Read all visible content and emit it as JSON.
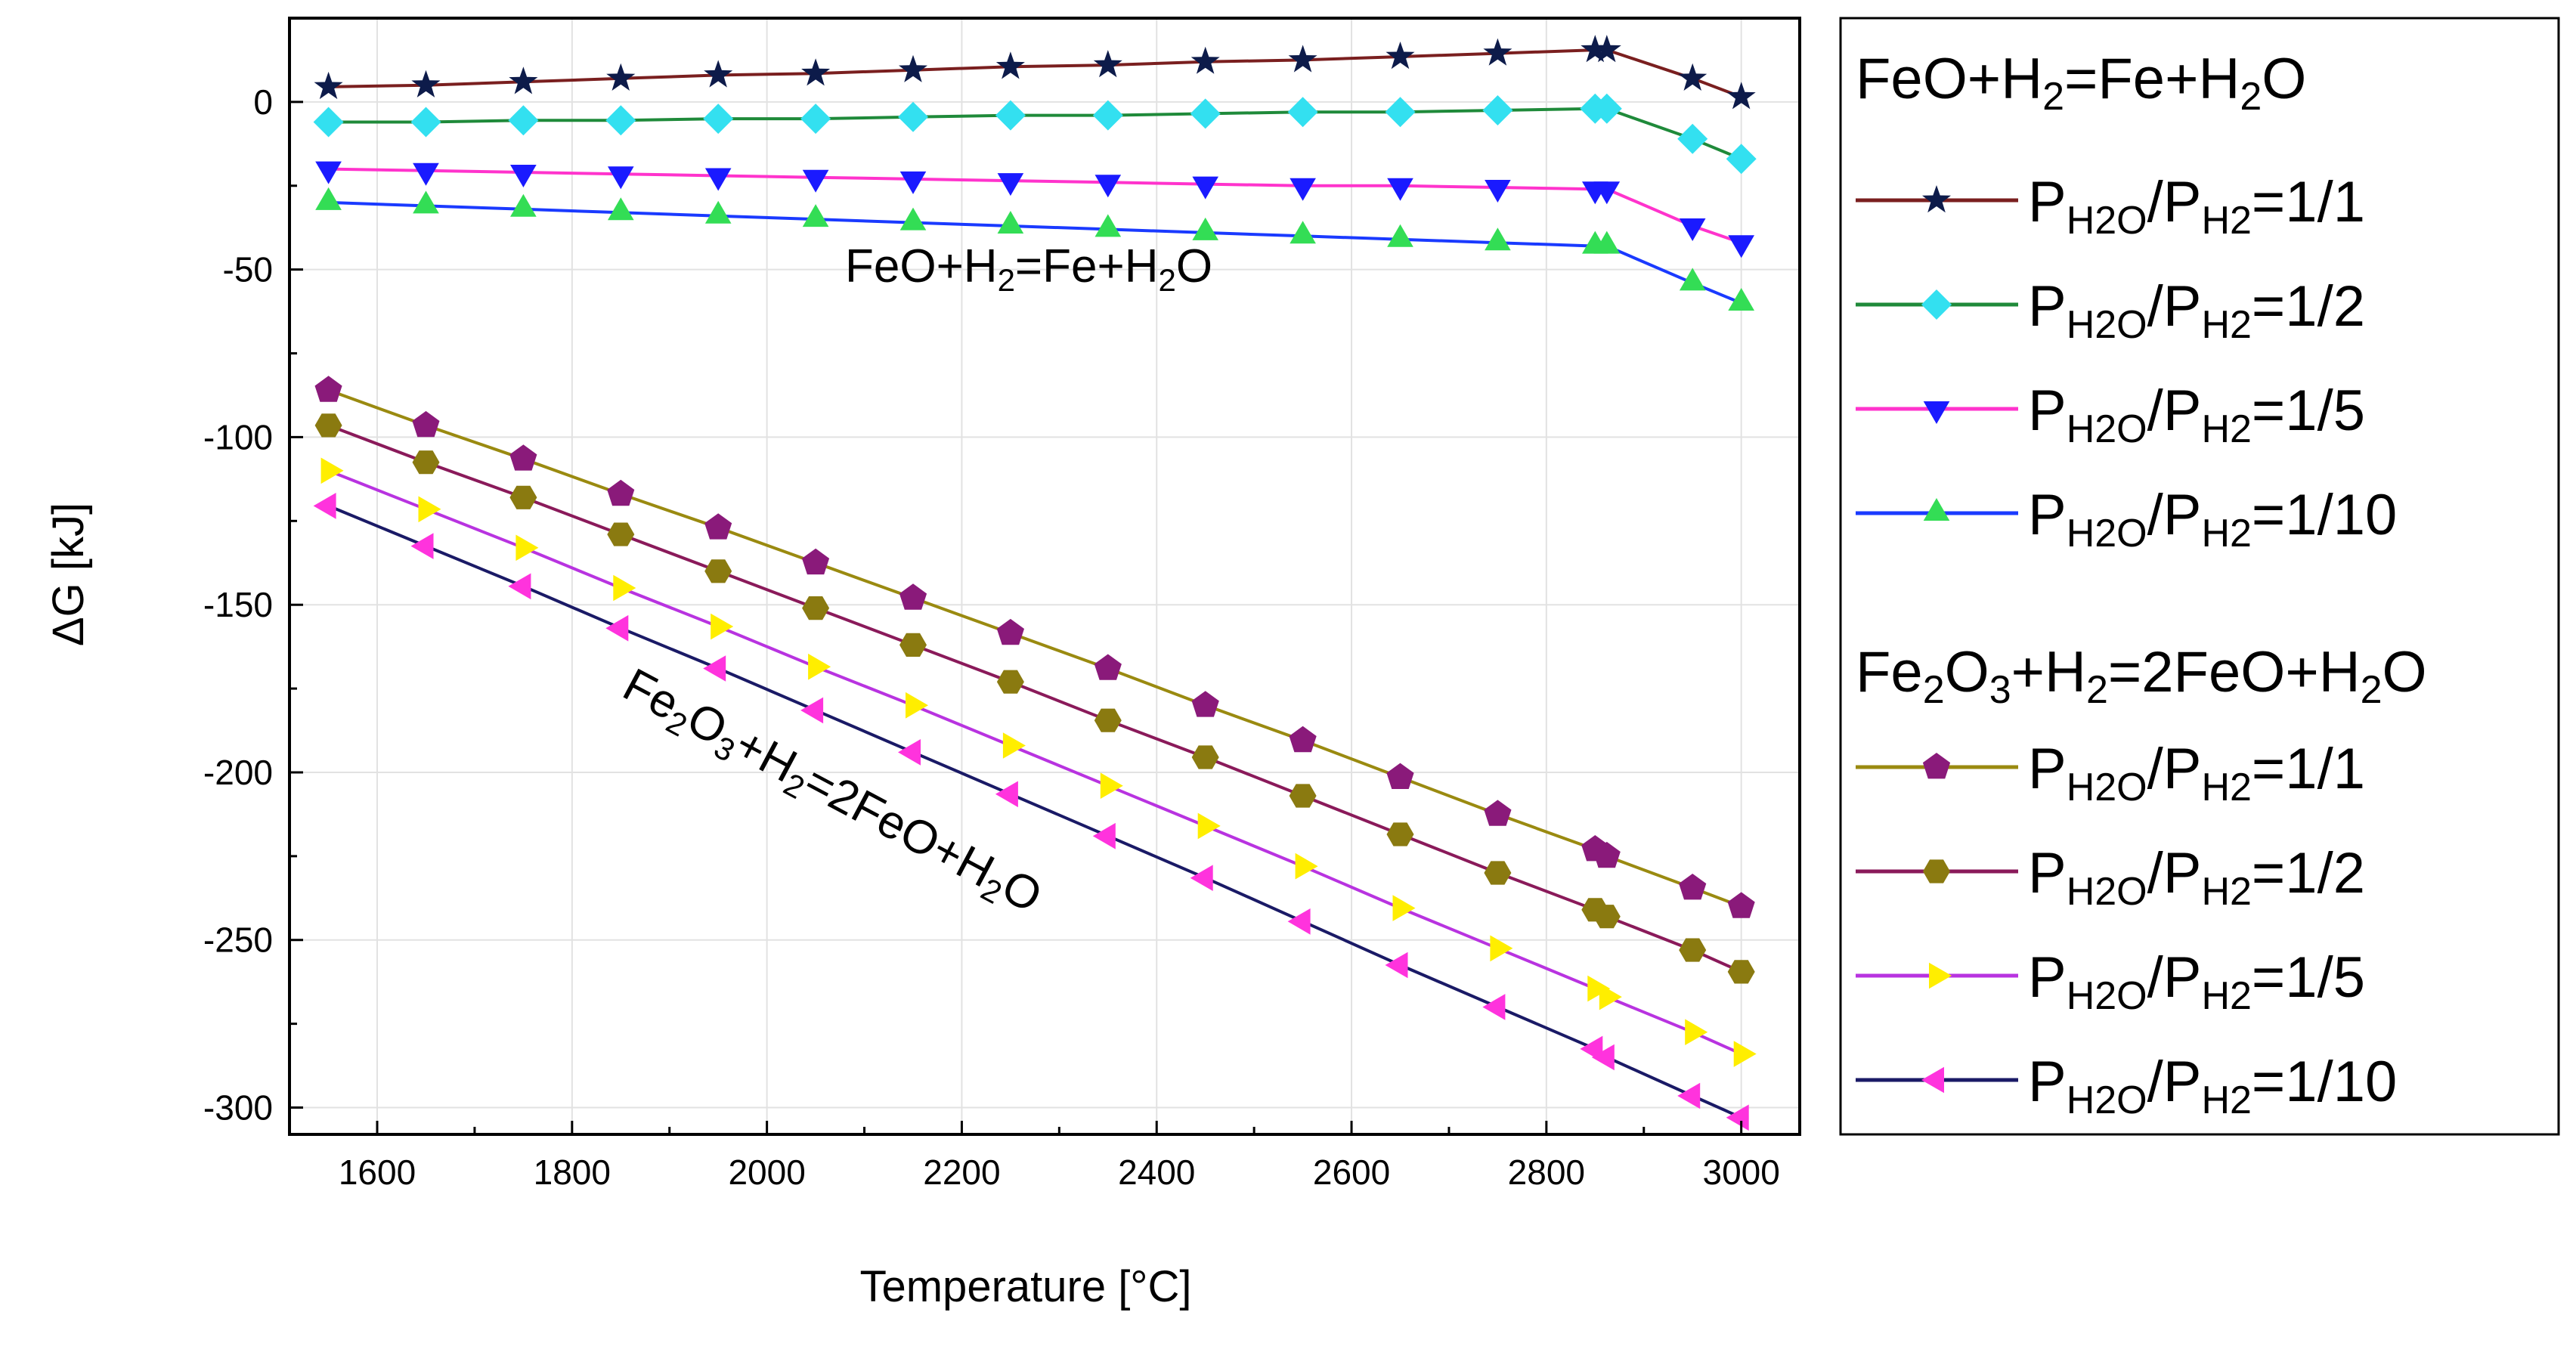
{
  "chart_data": {
    "type": "line",
    "title": "",
    "xlabel": "Temperature [°C]",
    "ylabel": "ΔG [kJ]",
    "xlim": [
      1510,
      3060
    ],
    "ylim": [
      -308,
      25
    ],
    "xticks": [
      1600,
      1800,
      2000,
      2200,
      2400,
      2600,
      2800,
      3000
    ],
    "yticks": [
      0,
      -50,
      -100,
      -150,
      -200,
      -250,
      -300
    ],
    "grid": true,
    "legend_position": "right",
    "x": [
      1550,
      1650,
      1750,
      1850,
      1950,
      2050,
      2150,
      2250,
      2350,
      2450,
      2550,
      2650,
      2750,
      2850,
      2862,
      2950,
      3000
    ],
    "series": [
      {
        "name": "FeO+H2=Fe+H2O, PH2O/PH2=1/1",
        "group": 0,
        "marker": "star",
        "line_color": "#7a1f1f",
        "marker_color": "#0d1b4a",
        "values": [
          4.5,
          5,
          6,
          7,
          8,
          8.5,
          9.5,
          10.5,
          11,
          12,
          12.5,
          13.5,
          14.5,
          15.5,
          15.5,
          7,
          1.5
        ]
      },
      {
        "name": "FeO+H2=Fe+H2O, PH2O/PH2=1/2",
        "group": 0,
        "marker": "diamond",
        "line_color": "#1f8a3a",
        "marker_color": "#33e0f0",
        "values": [
          -6,
          -6,
          -5.5,
          -5.5,
          -5,
          -5,
          -4.5,
          -4,
          -4,
          -3.5,
          -3,
          -3,
          -2.5,
          -2,
          -2,
          -11,
          -17
        ]
      },
      {
        "name": "FeO+H2=Fe+H2O, PH2O/PH2=1/5",
        "group": 0,
        "marker": "triangle-down",
        "line_color": "#ff33cc",
        "marker_color": "#1a1aff",
        "values": [
          -20,
          -20.5,
          -21,
          -21.5,
          -22,
          -22.5,
          -23,
          -23.5,
          -24,
          -24.5,
          -25,
          -25,
          -25.5,
          -26,
          -26,
          -37,
          -42
        ]
      },
      {
        "name": "FeO+H2=Fe+H2O, PH2O/PH2=1/10",
        "group": 0,
        "marker": "triangle-up",
        "line_color": "#1a3aff",
        "marker_color": "#33dd55",
        "values": [
          -30,
          -31,
          -32,
          -33,
          -34,
          -35,
          -36,
          -37,
          -38,
          -39,
          -40,
          -41,
          -42,
          -43,
          -43,
          -54,
          -60
        ]
      },
      {
        "name": "Fe2O3+H2=2FeO+H2O, PH2O/PH2=1/1",
        "group": 1,
        "marker": "pentagon",
        "line_color": "#9a8a10",
        "marker_color": "#8a1a7a",
        "values": [
          -86,
          -96.5,
          -106.5,
          -117,
          -127,
          -137.5,
          -148,
          -158.5,
          -169,
          -180,
          -190.5,
          -201.5,
          -212.5,
          -223,
          -225,
          -234.5,
          -240
        ]
      },
      {
        "name": "Fe2O3+H2=2FeO+H2O, PH2O/PH2=1/2",
        "group": 1,
        "marker": "hexagon",
        "line_color": "#8a1a5a",
        "marker_color": "#8a7a10",
        "values": [
          -96.5,
          -107.5,
          -118,
          -129,
          -140,
          -151,
          -162,
          -173,
          -184.5,
          -195.5,
          -207,
          -218.5,
          -230,
          -241,
          -243,
          -253,
          -259.5
        ]
      },
      {
        "name": "Fe2O3+H2=2FeO+H2O, PH2O/PH2=1/5",
        "group": 1,
        "marker": "triangle-right",
        "line_color": "#b833e0",
        "marker_color": "#ffee00",
        "values": [
          -110,
          -121.5,
          -133,
          -145,
          -156.5,
          -168.5,
          -180,
          -192,
          -204,
          -216,
          -228,
          -240.5,
          -252.5,
          -264.5,
          -267,
          -277.5,
          -284
        ]
      },
      {
        "name": "Fe2O3+H2=2FeO+H2O, PH2O/PH2=1/10",
        "group": 1,
        "marker": "triangle-left",
        "line_color": "#1a1a66",
        "marker_color": "#ff33dd",
        "values": [
          -120.5,
          -132.5,
          -144.5,
          -157,
          -169,
          -181.5,
          -194,
          -206.5,
          -219,
          -231.5,
          -244.5,
          -257.5,
          -270,
          -282.5,
          -285,
          -296.5,
          -303
        ]
      }
    ],
    "annotations": [
      {
        "parts": [
          "FeO+H",
          "2",
          "=Fe+H",
          "2",
          "O"
        ]
      },
      {
        "parts": [
          "Fe",
          "2",
          "O",
          "3",
          "+H",
          "2",
          "=2FeO+H",
          "2",
          "O"
        ]
      }
    ],
    "legend": {
      "groups": [
        {
          "heading": [
            "FeO+H",
            "2",
            "=Fe+H",
            "2",
            "O"
          ],
          "entries": [
            {
              "p1": "P",
              "s1": "H2O",
              "mid": "/P",
              "s2": "H2",
              "ratio": "=1/1"
            },
            {
              "p1": "P",
              "s1": "H2O",
              "mid": "/P",
              "s2": "H2",
              "ratio": "=1/2"
            },
            {
              "p1": "P",
              "s1": "H2O",
              "mid": "/P",
              "s2": "H2",
              "ratio": "=1/5"
            },
            {
              "p1": "P",
              "s1": "H2O",
              "mid": "/P",
              "s2": "H2",
              "ratio": "=1/10"
            }
          ]
        },
        {
          "heading": [
            "Fe",
            "2",
            "O",
            "3",
            "+H",
            "2",
            "=2FeO+H",
            "2",
            "O"
          ],
          "entries": [
            {
              "p1": "P",
              "s1": "H2O",
              "mid": "/P",
              "s2": "H2",
              "ratio": "=1/1"
            },
            {
              "p1": "P",
              "s1": "H2O",
              "mid": "/P",
              "s2": "H2",
              "ratio": "=1/2"
            },
            {
              "p1": "P",
              "s1": "H2O",
              "mid": "/P",
              "s2": "H2",
              "ratio": "=1/5"
            },
            {
              "p1": "P",
              "s1": "H2O",
              "mid": "/P",
              "s2": "H2",
              "ratio": "=1/10"
            }
          ]
        }
      ]
    }
  }
}
